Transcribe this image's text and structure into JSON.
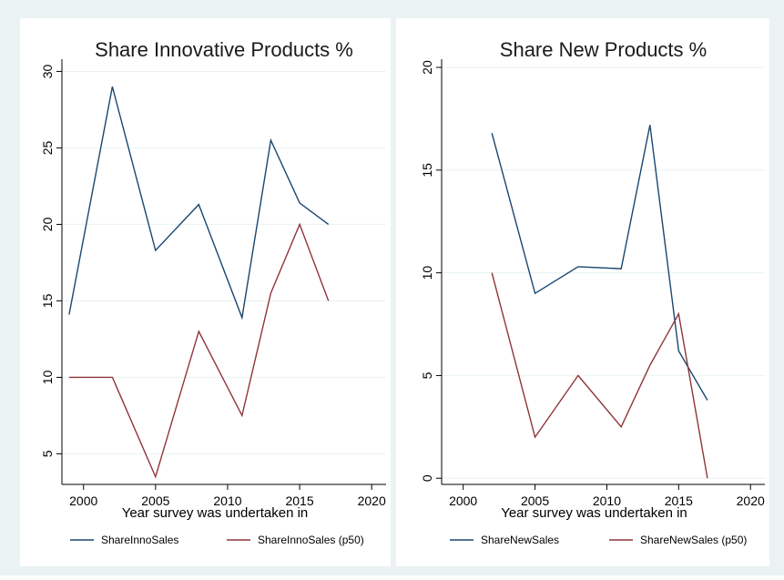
{
  "colors": {
    "outer_background": "#EAF2F3",
    "panel_background": "#FFFFFF",
    "gridline": "#EAF2F3",
    "axis": "#000000",
    "series_blue": "#1A476F",
    "series_red": "#90353B"
  },
  "shared_xlabel": "Year survey was undertaken in",
  "chart_data": [
    {
      "type": "line",
      "title": "Share Innovative Products %",
      "xlabel": "Year survey was undertaken in",
      "ylabel": "",
      "xlim": [
        1998.5,
        2021
      ],
      "ylim": [
        3,
        30.8
      ],
      "xticks": [
        2000,
        2005,
        2010,
        2015,
        2020
      ],
      "yticks": [
        5,
        10,
        15,
        20,
        25,
        30
      ],
      "grid": true,
      "legend": "bottom",
      "series": [
        {
          "name": "ShareInnoSales",
          "color": "#1A476F",
          "x": [
            1999,
            2002,
            2005,
            2008,
            2011,
            2013,
            2015,
            2017
          ],
          "y": [
            14.1,
            29.0,
            18.3,
            21.3,
            13.9,
            25.5,
            21.4,
            20.0
          ]
        },
        {
          "name": "ShareInnoSales (p50)",
          "color": "#90353B",
          "x": [
            1999,
            2002,
            2005,
            2008,
            2011,
            2013,
            2015,
            2017
          ],
          "y": [
            10,
            10,
            3.5,
            13,
            7.5,
            15.5,
            20,
            15
          ]
        }
      ]
    },
    {
      "type": "line",
      "title": "Share New Products %",
      "xlabel": "Year survey was undertaken in",
      "ylabel": "",
      "xlim": [
        1998.5,
        2021
      ],
      "ylim": [
        -0.3,
        20.4
      ],
      "xticks": [
        2000,
        2005,
        2010,
        2015,
        2020
      ],
      "yticks": [
        0,
        5,
        10,
        15,
        20
      ],
      "grid": true,
      "legend": "bottom",
      "series": [
        {
          "name": "ShareNewSales",
          "color": "#1A476F",
          "x": [
            2002,
            2005,
            2008,
            2011,
            2013,
            2015,
            2017
          ],
          "y": [
            16.8,
            9.0,
            10.3,
            10.2,
            17.2,
            6.2,
            3.8
          ]
        },
        {
          "name": "ShareNewSales (p50)",
          "color": "#90353B",
          "x": [
            2002,
            2005,
            2008,
            2011,
            2013,
            2015,
            2017
          ],
          "y": [
            10,
            2,
            5,
            2.5,
            5.5,
            8,
            0
          ]
        }
      ]
    }
  ]
}
